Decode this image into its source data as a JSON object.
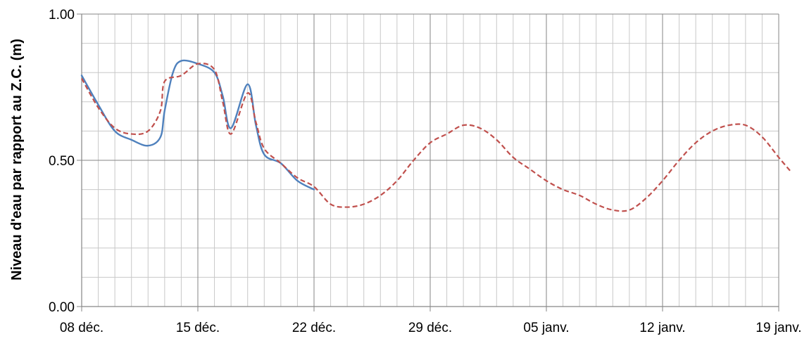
{
  "chart_data": {
    "type": "line",
    "ylabel": "Niveau d'eau par rapport au Z.C. (m)",
    "xlabel": "",
    "title": "",
    "ylim": [
      0,
      1
    ],
    "y_ticks": [
      "0.00",
      "0.50",
      "1.00"
    ],
    "y_tick_values": [
      0,
      0.5,
      1
    ],
    "x_range": [
      "2023-12-08",
      "2024-01-19"
    ],
    "x_ticks": [
      "08 déc.",
      "15 déc.",
      "22 déc.",
      "29 déc.",
      "05 janv.",
      "12 janv.",
      "19 janv."
    ],
    "x_tick_dates": [
      "2023-12-08",
      "2023-12-15",
      "2023-12-22",
      "2023-12-29",
      "2024-01-05",
      "2024-01-12",
      "2024-01-19"
    ],
    "grid": true,
    "legend": "none",
    "series": [
      {
        "style": "solid",
        "color": "#4F81BD",
        "points": [
          [
            "2023-12-08",
            0.79
          ],
          [
            "2023-12-09",
            0.69
          ],
          [
            "2023-12-10",
            0.6
          ],
          [
            "2023-12-11",
            0.57
          ],
          [
            "2023-12-12",
            0.55
          ],
          [
            "2023-12-12 18:00",
            0.58
          ],
          [
            "2023-12-13",
            0.67
          ],
          [
            "2023-12-13 12:00",
            0.8
          ],
          [
            "2023-12-14",
            0.84
          ],
          [
            "2023-12-15",
            0.83
          ],
          [
            "2023-12-16",
            0.8
          ],
          [
            "2023-12-16 12:00",
            0.72
          ],
          [
            "2023-12-17",
            0.61
          ],
          [
            "2023-12-18",
            0.76
          ],
          [
            "2023-12-18 12:00",
            0.62
          ],
          [
            "2023-12-19",
            0.52
          ],
          [
            "2023-12-20",
            0.49
          ],
          [
            "2023-12-21",
            0.43
          ],
          [
            "2023-12-22",
            0.4
          ]
        ]
      },
      {
        "style": "dashed",
        "color": "#C0504D",
        "points": [
          [
            "2023-12-08",
            0.78
          ],
          [
            "2023-12-09",
            0.68
          ],
          [
            "2023-12-10",
            0.61
          ],
          [
            "2023-12-11",
            0.59
          ],
          [
            "2023-12-12",
            0.6
          ],
          [
            "2023-12-12 18:00",
            0.67
          ],
          [
            "2023-12-13",
            0.77
          ],
          [
            "2023-12-14",
            0.79
          ],
          [
            "2023-12-15",
            0.83
          ],
          [
            "2023-12-16",
            0.81
          ],
          [
            "2023-12-16 12:00",
            0.7
          ],
          [
            "2023-12-17",
            0.59
          ],
          [
            "2023-12-18",
            0.73
          ],
          [
            "2023-12-18 12:00",
            0.63
          ],
          [
            "2023-12-19",
            0.54
          ],
          [
            "2023-12-20",
            0.49
          ],
          [
            "2023-12-21",
            0.44
          ],
          [
            "2023-12-22",
            0.41
          ],
          [
            "2023-12-23",
            0.35
          ],
          [
            "2023-12-24",
            0.34
          ],
          [
            "2023-12-25",
            0.35
          ],
          [
            "2023-12-26",
            0.38
          ],
          [
            "2023-12-27",
            0.43
          ],
          [
            "2023-12-28",
            0.5
          ],
          [
            "2023-12-29",
            0.56
          ],
          [
            "2023-12-30",
            0.59
          ],
          [
            "2023-12-31",
            0.62
          ],
          [
            "2024-01-01",
            0.61
          ],
          [
            "2024-01-02",
            0.57
          ],
          [
            "2024-01-03",
            0.51
          ],
          [
            "2024-01-04",
            0.47
          ],
          [
            "2024-01-05",
            0.43
          ],
          [
            "2024-01-06",
            0.4
          ],
          [
            "2024-01-07",
            0.38
          ],
          [
            "2024-01-08",
            0.35
          ],
          [
            "2024-01-09",
            0.33
          ],
          [
            "2024-01-10",
            0.33
          ],
          [
            "2024-01-11",
            0.37
          ],
          [
            "2024-01-12",
            0.43
          ],
          [
            "2024-01-13",
            0.5
          ],
          [
            "2024-01-14",
            0.56
          ],
          [
            "2024-01-15",
            0.6
          ],
          [
            "2024-01-16",
            0.62
          ],
          [
            "2024-01-17",
            0.62
          ],
          [
            "2024-01-18",
            0.58
          ],
          [
            "2024-01-19",
            0.51
          ],
          [
            "2024-01-19 18:00",
            0.46
          ]
        ]
      }
    ]
  }
}
